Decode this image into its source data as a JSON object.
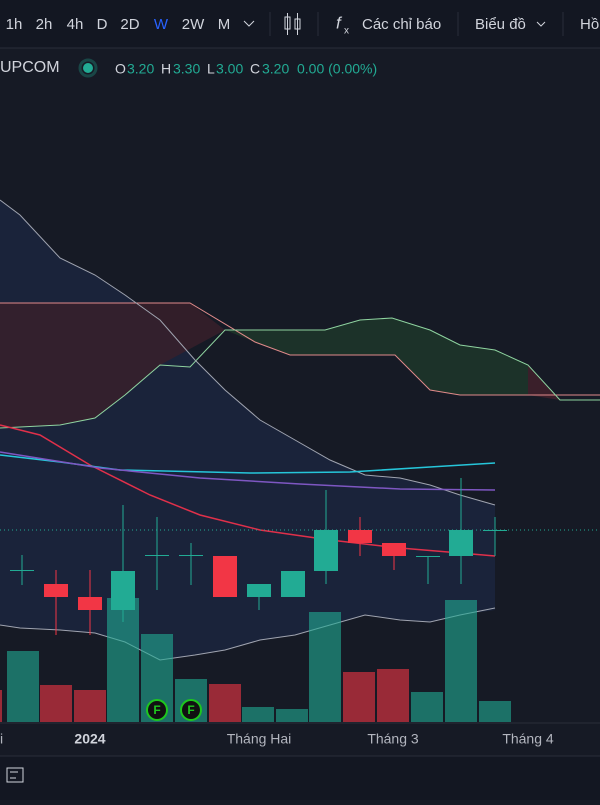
{
  "toolbar": {
    "intervals": [
      "1h",
      "2h",
      "4h",
      "D",
      "2D",
      "W",
      "2W",
      "M"
    ],
    "indicators": "Các chỉ báo",
    "chart": "Biểu đồ",
    "extra": "Hồ"
  },
  "legend": {
    "exchange": "UPCOM",
    "o_label": "O",
    "o": "3.20",
    "h_label": "H",
    "h": "3.30",
    "l_label": "L",
    "l": "3.00",
    "c_label": "C",
    "c": "3.20",
    "change": "0.00 (0.00%)"
  },
  "xaxis": [
    "i",
    "2024",
    "Tháng Hai",
    "Tháng 3",
    "Tháng 4"
  ],
  "markers": [
    "F",
    "F"
  ]
}
